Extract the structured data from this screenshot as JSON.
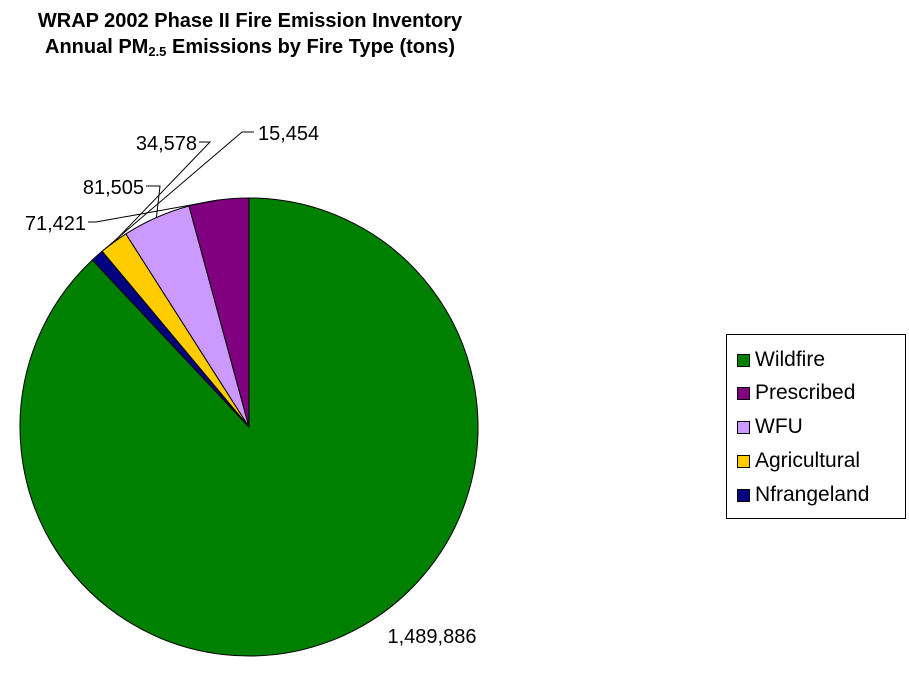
{
  "chart_data": {
    "type": "pie",
    "title_line1": "WRAP 2002 Phase II Fire Emission Inventory",
    "title_line2_pre": "Annual PM",
    "title_line2_sub": "2.5",
    "title_line2_post": " Emissions by Fire Type (tons)",
    "categories": [
      "Wildfire",
      "Prescribed",
      "WFU",
      "Agricultural",
      "Nfrangeland"
    ],
    "values": [
      1489886,
      71421,
      81505,
      34578,
      15454
    ],
    "data_labels": [
      "1,489,886",
      "71,421",
      "81,505",
      "34,578",
      "15,454"
    ],
    "colors": [
      "#008000",
      "#800080",
      "#CC99FF",
      "#FFCC00",
      "#000080"
    ],
    "legend_position": "right"
  }
}
